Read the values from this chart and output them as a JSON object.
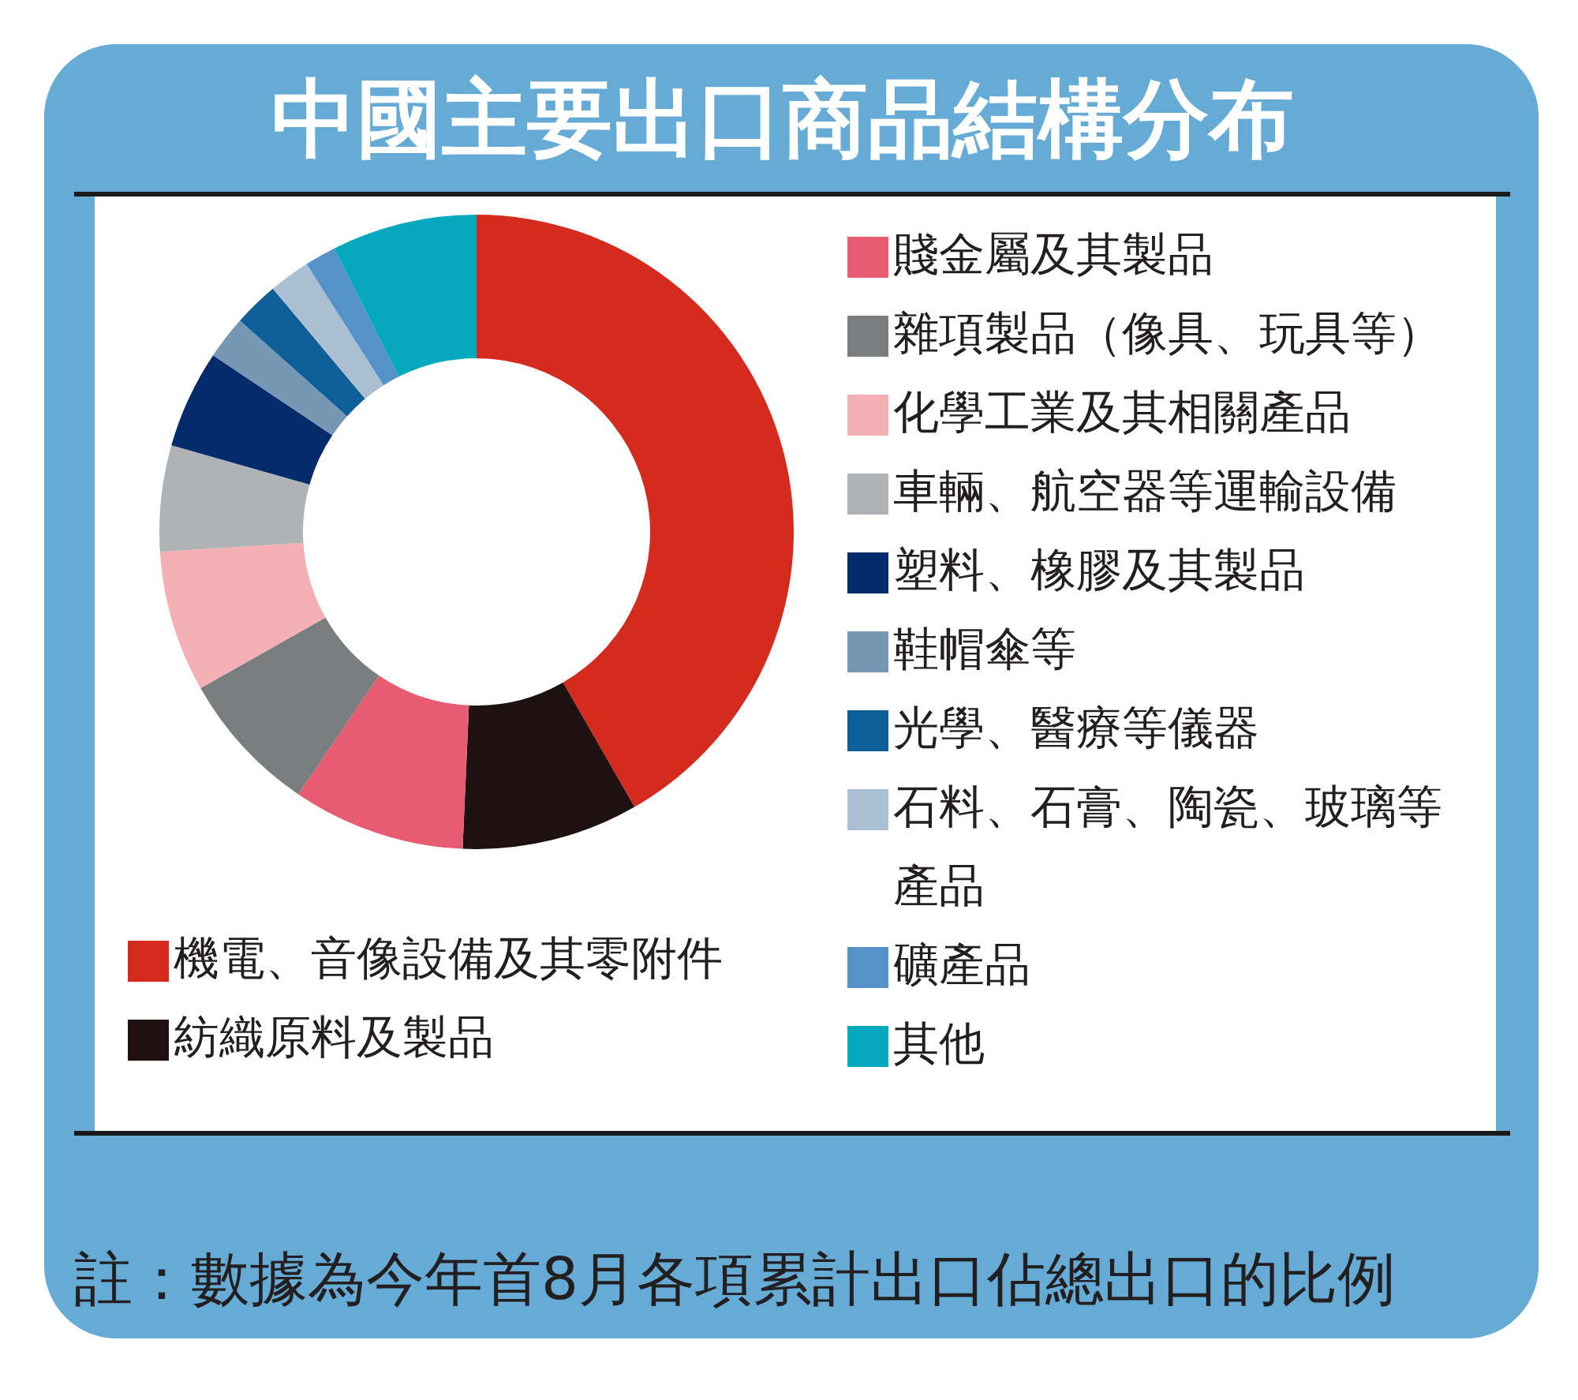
{
  "chart_data": {
    "type": "donut",
    "title": "中國主要出口商品結構分布",
    "categories": [
      "機電、音像設備及其零附件",
      "紡織原料及製品",
      "賤金屬及其製品",
      "雜項製品（像具、玩具等）",
      "化學工業及其相關產品",
      "車輛、航空器等運輸設備",
      "塑料、橡膠及其製品",
      "鞋帽傘等",
      "光學、醫療等儀器",
      "石料、石膏、陶瓷、玻璃等產品",
      "礦產品",
      "其他"
    ],
    "values": [
      41.7,
      9.0,
      8.8,
      7.3,
      7.2,
      5.4,
      5.0,
      2.2,
      2.3,
      2.1,
      1.6,
      7.4
    ],
    "colors": [
      "#d52b1e",
      "#1f1112",
      "#e85c72",
      "#7a7d7e",
      "#f4b0b5",
      "#b0b3b5",
      "#062b6a",
      "#7698b4",
      "#0e5e98",
      "#abbfd3",
      "#5592c8",
      "#05a8bd"
    ],
    "legend": "right",
    "annotations": [
      "註：數據為今年首8月各項累計出口佔總出口的比例"
    ]
  }
}
